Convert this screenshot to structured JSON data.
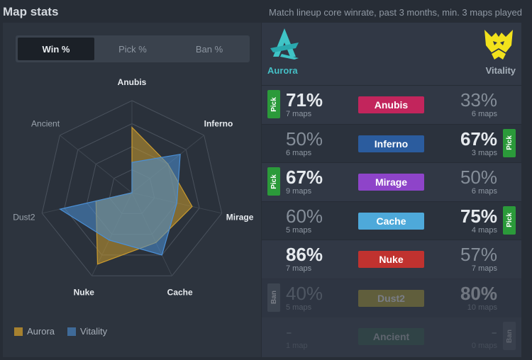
{
  "header": {
    "title": "Map stats",
    "subtitle": "Match lineup core winrate, past 3 months, min. 3 maps played"
  },
  "tabs": [
    {
      "label": "Win %",
      "active": true
    },
    {
      "label": "Pick %",
      "active": false
    },
    {
      "label": "Ban %",
      "active": false
    }
  ],
  "radar": {
    "axes": [
      "Anubis",
      "Inferno",
      "Mirage",
      "Cache",
      "Nuke",
      "Dust2",
      "Ancient"
    ],
    "max": 100,
    "series": [
      {
        "name": "Aurora",
        "color": "#c99a2e",
        "values": [
          71,
          50,
          67,
          60,
          86,
          40,
          0
        ]
      },
      {
        "name": "Vitality",
        "color": "#4a8fd6",
        "values": [
          33,
          67,
          50,
          75,
          57,
          80,
          0
        ]
      }
    ]
  },
  "legend": [
    {
      "label": "Aurora",
      "color": "#a6812f"
    },
    {
      "label": "Vitality",
      "color": "#3f6a98"
    }
  ],
  "teams": {
    "left": {
      "name": "Aurora",
      "logo": "aurora-logo-icon"
    },
    "right": {
      "name": "Vitality",
      "logo": "vitality-logo-icon"
    }
  },
  "rows": [
    {
      "map": "Anubis",
      "color": "#c2255c",
      "left_pct": "71%",
      "left_maps": "7 maps",
      "right_pct": "33%",
      "right_maps": "6 maps",
      "left_win": true,
      "badge_side": "left",
      "badge": "Pick",
      "state": ""
    },
    {
      "map": "Inferno",
      "color": "#2b5c9e",
      "left_pct": "50%",
      "left_maps": "6 maps",
      "right_pct": "67%",
      "right_maps": "3 maps",
      "left_win": false,
      "badge_side": "right",
      "badge": "Pick",
      "state": ""
    },
    {
      "map": "Mirage",
      "color": "#8e44c9",
      "left_pct": "67%",
      "left_maps": "9 maps",
      "right_pct": "50%",
      "right_maps": "6 maps",
      "left_win": true,
      "badge_side": "left",
      "badge": "Pick",
      "state": ""
    },
    {
      "map": "Cache",
      "color": "#4ea9da",
      "left_pct": "60%",
      "left_maps": "5 maps",
      "right_pct": "75%",
      "right_maps": "4 maps",
      "left_win": false,
      "badge_side": "right",
      "badge": "Pick",
      "state": ""
    },
    {
      "map": "Nuke",
      "color": "#c0322f",
      "left_pct": "86%",
      "left_maps": "7 maps",
      "right_pct": "57%",
      "right_maps": "7 maps",
      "left_win": true,
      "badge_side": "",
      "badge": "",
      "state": ""
    },
    {
      "map": "Dust2",
      "color": "#b8a52c",
      "left_pct": "40%",
      "left_maps": "5 maps",
      "right_pct": "80%",
      "right_maps": "10 maps",
      "left_win": false,
      "badge_side": "left",
      "badge": "Ban",
      "state": "ban"
    },
    {
      "map": "Ancient",
      "color": "#2f6b4a",
      "left_pct": "-",
      "left_maps": "1 map",
      "right_pct": "-",
      "right_maps": "0 maps",
      "left_win": false,
      "badge_side": "right",
      "badge": "Ban",
      "state": "faded"
    }
  ]
}
